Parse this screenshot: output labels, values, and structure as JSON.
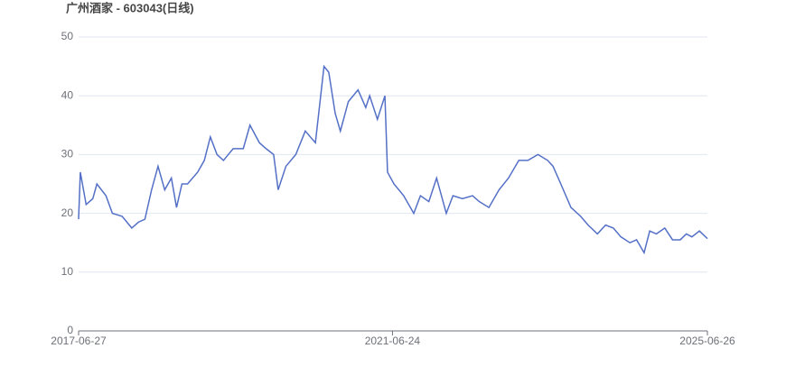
{
  "chart_data": {
    "type": "line",
    "title": "广州酒家 - 603043(日线)",
    "x": [
      "2017-06-27",
      "2017-07-05",
      "2017-08-01",
      "2017-09-01",
      "2017-09-20",
      "2017-11-01",
      "2017-12-01",
      "2018-01-15",
      "2018-03-01",
      "2018-04-01",
      "2018-05-01",
      "2018-06-01",
      "2018-07-01",
      "2018-08-01",
      "2018-09-01",
      "2018-09-25",
      "2018-10-20",
      "2018-11-15",
      "2019-01-01",
      "2019-02-01",
      "2019-03-01",
      "2019-04-01",
      "2019-05-01",
      "2019-06-15",
      "2019-08-01",
      "2019-09-01",
      "2019-10-15",
      "2019-11-15",
      "2019-12-20",
      "2020-01-10",
      "2020-02-15",
      "2020-04-01",
      "2020-05-15",
      "2020-07-01",
      "2020-08-10",
      "2020-09-01",
      "2020-10-01",
      "2020-10-25",
      "2020-12-01",
      "2021-01-15",
      "2021-02-20",
      "2021-03-10",
      "2021-04-15",
      "2021-05-20",
      "2021-06-01",
      "2021-07-01",
      "2021-08-15",
      "2021-10-01",
      "2021-11-01",
      "2021-12-10",
      "2022-01-15",
      "2022-03-01",
      "2022-04-01",
      "2022-05-15",
      "2022-07-01",
      "2022-08-01",
      "2022-09-15",
      "2022-11-01",
      "2022-12-15",
      "2023-02-01",
      "2023-03-15",
      "2023-05-01",
      "2023-06-15",
      "2023-07-10",
      "2023-08-15",
      "2023-10-01",
      "2023-11-15",
      "2023-12-20",
      "2024-02-01",
      "2024-03-10",
      "2024-04-15",
      "2024-05-20",
      "2024-07-01",
      "2024-08-01",
      "2024-09-05",
      "2024-10-01",
      "2024-11-01",
      "2024-12-10",
      "2025-01-15",
      "2025-02-20",
      "2025-03-20",
      "2025-04-15",
      "2025-05-20",
      "2025-06-26"
    ],
    "values": [
      19,
      27,
      21.5,
      22.5,
      25,
      23,
      20,
      19.5,
      17.5,
      18.5,
      19,
      24,
      28,
      24,
      26,
      21,
      25,
      25,
      27,
      29,
      33,
      30,
      29,
      31,
      31,
      35,
      32,
      31,
      30,
      24,
      28,
      30,
      34,
      32,
      45,
      44,
      37,
      34,
      39,
      41,
      38,
      40,
      36,
      40,
      27,
      25,
      23,
      20,
      23,
      22,
      26,
      20,
      23,
      22.5,
      23,
      22,
      21,
      24,
      26,
      29,
      29,
      30,
      29,
      28,
      25,
      21,
      19.5,
      18,
      16.5,
      18,
      17.5,
      16,
      15,
      15.5,
      13.3,
      17,
      16.5,
      17.5,
      15.5,
      15.5,
      16.5,
      16,
      17,
      15.7
    ],
    "color": "#5470c6",
    "xlim": [
      "2017-06-27",
      "2025-06-26"
    ],
    "xticks": [
      "2017-06-27",
      "2021-06-24",
      "2025-06-26"
    ],
    "ylim": [
      0,
      50
    ],
    "yticks": [
      0,
      10,
      20,
      30,
      40,
      50
    ],
    "grid": true
  }
}
